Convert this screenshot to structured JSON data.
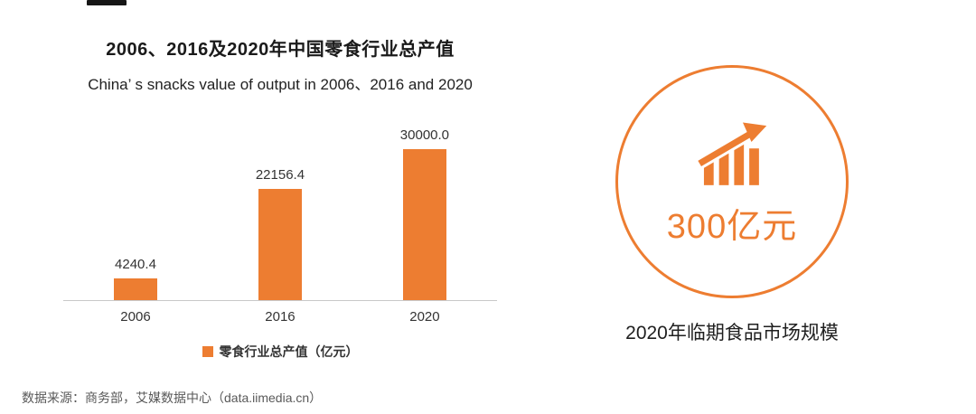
{
  "chart": {
    "title": "2006、2016及2020年中国零食行业总产值",
    "subtitle": "China’ s snacks value of output in 2006、2016 and 2020",
    "legend_label": "零食行业总产值（亿元）"
  },
  "chart_data": {
    "type": "bar",
    "categories": [
      "2006",
      "2016",
      "2020"
    ],
    "values": [
      4240.4,
      22156.4,
      30000.0
    ],
    "value_labels": [
      "4240.4",
      "22156.4",
      "30000.0"
    ],
    "series_name": "零食行业总产值（亿元）",
    "title": "2006、2016及2020年中国零食行业总产值",
    "subtitle": "China’ s snacks value of output in 2006、2016 and 2020",
    "xlabel": "",
    "ylabel": "",
    "ylim": [
      0,
      30000
    ],
    "grid": false,
    "legend_position": "bottom",
    "bar_color": "#ED7D31"
  },
  "highlight": {
    "value": "300亿元",
    "caption": "2020年临期食品市场规模",
    "icon": "growth-bar-chart-icon",
    "accent_color": "#ED7D31"
  },
  "footer": {
    "source": "数据来源：商务部，艾媒数据中心（data.iimedia.cn）"
  }
}
